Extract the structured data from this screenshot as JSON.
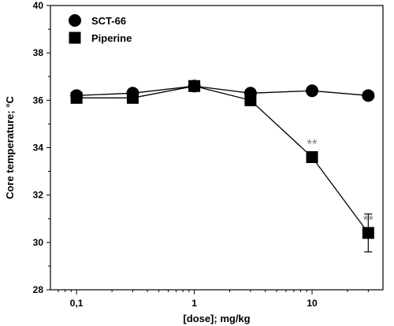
{
  "chart_data": {
    "type": "line",
    "xlabel": "[dose]; mg/kg",
    "ylabel": "Core temperature; °C",
    "xscale": "log",
    "xlim": [
      0.06,
      40
    ],
    "ylim": [
      28,
      40
    ],
    "xticks": [
      0.1,
      1,
      10
    ],
    "xtick_labels": [
      "0,1",
      "1",
      "10"
    ],
    "yticks": [
      28,
      30,
      32,
      34,
      36,
      38,
      40
    ],
    "ytick_labels": [
      "28",
      "30",
      "32",
      "34",
      "36",
      "38",
      "40"
    ],
    "grid": false,
    "legend_position": "top-left",
    "series": [
      {
        "name": "SCT-66",
        "marker": "circle",
        "color": "#000000",
        "x": [
          0.1,
          0.3,
          1,
          3,
          10,
          30
        ],
        "y": [
          36.2,
          36.3,
          36.6,
          36.3,
          36.4,
          36.2
        ],
        "error": [
          0,
          0,
          0,
          0,
          0,
          0
        ]
      },
      {
        "name": "Piperine",
        "marker": "square",
        "color": "#000000",
        "x": [
          0.1,
          0.3,
          1,
          3,
          10,
          30
        ],
        "y": [
          36.1,
          36.1,
          36.6,
          36.0,
          33.6,
          30.4
        ],
        "error": [
          0,
          0,
          0,
          0,
          0,
          0.8
        ]
      }
    ],
    "annotations": [
      {
        "text": "**",
        "x": 10,
        "y": 33.6
      },
      {
        "text": "**",
        "x": 30,
        "y": 30.4
      }
    ],
    "annotation_color": "#7a7a7a"
  }
}
